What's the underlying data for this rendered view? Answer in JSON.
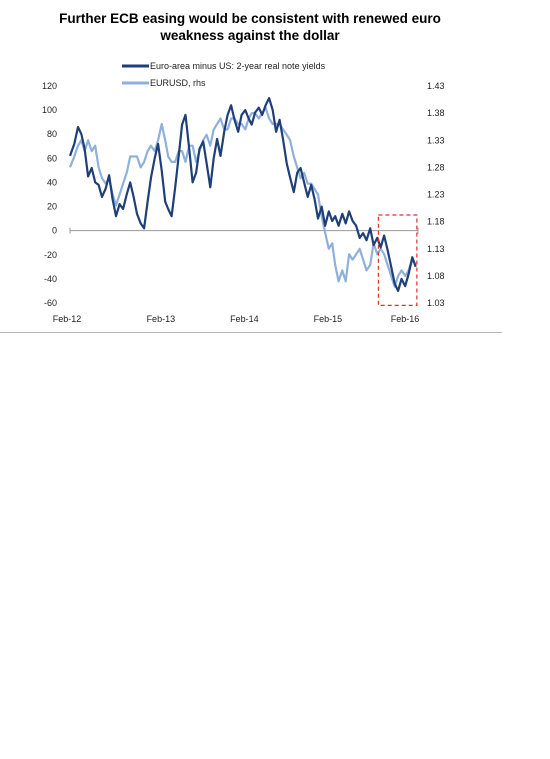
{
  "title_line1": "Further ECB easing would be consistent with renewed euro",
  "title_line2": "weakness against the dollar",
  "chart_data": {
    "type": "line",
    "x_tick_labels": [
      "Feb-12",
      "Feb-13",
      "Feb-14",
      "Feb-15",
      "Feb-16"
    ],
    "x_range": [
      "2012-01",
      "2016-03"
    ],
    "y_left": {
      "ticks": [
        120,
        100,
        80,
        60,
        40,
        20,
        0,
        -20,
        -40,
        -60
      ],
      "ylim": [
        -60,
        120
      ]
    },
    "y_right": {
      "ticks": [
        "1.43",
        "1.38",
        "1.33",
        "1.28",
        "1.23",
        "1.18",
        "1.13",
        "1.08",
        "1.03"
      ],
      "ylim": [
        1.03,
        1.43
      ]
    },
    "legend": {
      "placement": "top-center"
    },
    "series": [
      {
        "name": "Euro-area minus US: 2-year real note yields",
        "axis": "left",
        "color": "#1f3f77",
        "points": [
          [
            "2012-01-01",
            62
          ],
          [
            "2012-01-20",
            72
          ],
          [
            "2012-02-05",
            86
          ],
          [
            "2012-02-20",
            80
          ],
          [
            "2012-03-05",
            68
          ],
          [
            "2012-03-20",
            45
          ],
          [
            "2012-04-05",
            52
          ],
          [
            "2012-04-20",
            40
          ],
          [
            "2012-05-05",
            38
          ],
          [
            "2012-05-20",
            28
          ],
          [
            "2012-06-05",
            35
          ],
          [
            "2012-06-20",
            46
          ],
          [
            "2012-07-05",
            26
          ],
          [
            "2012-07-20",
            12
          ],
          [
            "2012-08-05",
            22
          ],
          [
            "2012-08-20",
            18
          ],
          [
            "2012-09-05",
            30
          ],
          [
            "2012-09-20",
            40
          ],
          [
            "2012-10-05",
            28
          ],
          [
            "2012-10-20",
            14
          ],
          [
            "2012-11-05",
            6
          ],
          [
            "2012-11-20",
            2
          ],
          [
            "2012-12-05",
            24
          ],
          [
            "2012-12-20",
            44
          ],
          [
            "2013-01-05",
            60
          ],
          [
            "2013-01-20",
            72
          ],
          [
            "2013-02-05",
            50
          ],
          [
            "2013-02-20",
            24
          ],
          [
            "2013-03-05",
            18
          ],
          [
            "2013-03-20",
            12
          ],
          [
            "2013-04-05",
            36
          ],
          [
            "2013-04-20",
            62
          ],
          [
            "2013-05-05",
            88
          ],
          [
            "2013-05-20",
            96
          ],
          [
            "2013-06-05",
            68
          ],
          [
            "2013-06-20",
            40
          ],
          [
            "2013-07-05",
            48
          ],
          [
            "2013-07-20",
            68
          ],
          [
            "2013-08-05",
            74
          ],
          [
            "2013-08-20",
            56
          ],
          [
            "2013-09-05",
            36
          ],
          [
            "2013-09-20",
            60
          ],
          [
            "2013-10-05",
            76
          ],
          [
            "2013-10-20",
            62
          ],
          [
            "2013-11-05",
            82
          ],
          [
            "2013-11-20",
            96
          ],
          [
            "2013-12-05",
            104
          ],
          [
            "2013-12-20",
            92
          ],
          [
            "2014-01-05",
            82
          ],
          [
            "2014-01-20",
            96
          ],
          [
            "2014-02-05",
            100
          ],
          [
            "2014-02-20",
            93
          ],
          [
            "2014-03-05",
            88
          ],
          [
            "2014-03-20",
            98
          ],
          [
            "2014-04-05",
            102
          ],
          [
            "2014-04-20",
            96
          ],
          [
            "2014-05-05",
            104
          ],
          [
            "2014-05-20",
            110
          ],
          [
            "2014-06-05",
            100
          ],
          [
            "2014-06-20",
            82
          ],
          [
            "2014-07-05",
            92
          ],
          [
            "2014-07-20",
            76
          ],
          [
            "2014-08-05",
            56
          ],
          [
            "2014-08-20",
            44
          ],
          [
            "2014-09-05",
            32
          ],
          [
            "2014-09-20",
            48
          ],
          [
            "2014-10-05",
            52
          ],
          [
            "2014-10-20",
            40
          ],
          [
            "2014-11-05",
            28
          ],
          [
            "2014-11-20",
            38
          ],
          [
            "2014-12-05",
            26
          ],
          [
            "2014-12-20",
            10
          ],
          [
            "2015-01-05",
            20
          ],
          [
            "2015-01-20",
            4
          ],
          [
            "2015-02-05",
            16
          ],
          [
            "2015-02-20",
            8
          ],
          [
            "2015-03-05",
            12
          ],
          [
            "2015-03-20",
            4
          ],
          [
            "2015-04-05",
            14
          ],
          [
            "2015-04-20",
            6
          ],
          [
            "2015-05-05",
            16
          ],
          [
            "2015-05-20",
            8
          ],
          [
            "2015-06-05",
            4
          ],
          [
            "2015-06-20",
            -6
          ],
          [
            "2015-07-05",
            -2
          ],
          [
            "2015-07-20",
            -8
          ],
          [
            "2015-08-05",
            2
          ],
          [
            "2015-08-20",
            -12
          ],
          [
            "2015-09-05",
            -6
          ],
          [
            "2015-09-20",
            -14
          ],
          [
            "2015-10-05",
            -4
          ],
          [
            "2015-10-20",
            -16
          ],
          [
            "2015-11-05",
            -30
          ],
          [
            "2015-11-20",
            -44
          ],
          [
            "2015-12-05",
            -50
          ],
          [
            "2015-12-20",
            -40
          ],
          [
            "2016-01-05",
            -46
          ],
          [
            "2016-01-20",
            -36
          ],
          [
            "2016-02-05",
            -22
          ],
          [
            "2016-02-20",
            -30
          ]
        ]
      },
      {
        "name": "EURUSD, rhs",
        "axis": "right",
        "color": "#8fb0dc",
        "points": [
          [
            "2012-01-01",
            1.28
          ],
          [
            "2012-01-20",
            1.3
          ],
          [
            "2012-02-05",
            1.32
          ],
          [
            "2012-02-20",
            1.33
          ],
          [
            "2012-03-05",
            1.31
          ],
          [
            "2012-03-20",
            1.33
          ],
          [
            "2012-04-05",
            1.31
          ],
          [
            "2012-04-20",
            1.32
          ],
          [
            "2012-05-05",
            1.28
          ],
          [
            "2012-05-20",
            1.26
          ],
          [
            "2012-06-05",
            1.25
          ],
          [
            "2012-06-20",
            1.26
          ],
          [
            "2012-07-05",
            1.23
          ],
          [
            "2012-07-20",
            1.21
          ],
          [
            "2012-08-05",
            1.23
          ],
          [
            "2012-08-20",
            1.25
          ],
          [
            "2012-09-05",
            1.27
          ],
          [
            "2012-09-20",
            1.3
          ],
          [
            "2012-10-05",
            1.3
          ],
          [
            "2012-10-20",
            1.3
          ],
          [
            "2012-11-05",
            1.28
          ],
          [
            "2012-11-20",
            1.29
          ],
          [
            "2012-12-05",
            1.31
          ],
          [
            "2012-12-20",
            1.32
          ],
          [
            "2013-01-05",
            1.31
          ],
          [
            "2013-01-20",
            1.33
          ],
          [
            "2013-02-05",
            1.36
          ],
          [
            "2013-02-20",
            1.33
          ],
          [
            "2013-03-05",
            1.3
          ],
          [
            "2013-03-20",
            1.29
          ],
          [
            "2013-04-05",
            1.29
          ],
          [
            "2013-04-20",
            1.31
          ],
          [
            "2013-05-05",
            1.31
          ],
          [
            "2013-05-20",
            1.29
          ],
          [
            "2013-06-05",
            1.32
          ],
          [
            "2013-06-20",
            1.32
          ],
          [
            "2013-07-05",
            1.29
          ],
          [
            "2013-07-20",
            1.31
          ],
          [
            "2013-08-05",
            1.33
          ],
          [
            "2013-08-20",
            1.34
          ],
          [
            "2013-09-05",
            1.32
          ],
          [
            "2013-09-20",
            1.35
          ],
          [
            "2013-10-05",
            1.36
          ],
          [
            "2013-10-20",
            1.37
          ],
          [
            "2013-11-05",
            1.35
          ],
          [
            "2013-11-20",
            1.35
          ],
          [
            "2013-12-05",
            1.37
          ],
          [
            "2013-12-20",
            1.37
          ],
          [
            "2014-01-05",
            1.36
          ],
          [
            "2014-01-20",
            1.36
          ],
          [
            "2014-02-05",
            1.35
          ],
          [
            "2014-02-20",
            1.37
          ],
          [
            "2014-03-05",
            1.38
          ],
          [
            "2014-03-20",
            1.38
          ],
          [
            "2014-04-05",
            1.37
          ],
          [
            "2014-04-20",
            1.38
          ],
          [
            "2014-05-05",
            1.39
          ],
          [
            "2014-05-20",
            1.37
          ],
          [
            "2014-06-05",
            1.36
          ],
          [
            "2014-06-20",
            1.36
          ],
          [
            "2014-07-05",
            1.36
          ],
          [
            "2014-07-20",
            1.35
          ],
          [
            "2014-08-05",
            1.34
          ],
          [
            "2014-08-20",
            1.33
          ],
          [
            "2014-09-05",
            1.3
          ],
          [
            "2014-09-20",
            1.28
          ],
          [
            "2014-10-05",
            1.26
          ],
          [
            "2014-10-20",
            1.27
          ],
          [
            "2014-11-05",
            1.25
          ],
          [
            "2014-11-20",
            1.25
          ],
          [
            "2014-12-05",
            1.24
          ],
          [
            "2014-12-20",
            1.23
          ],
          [
            "2015-01-05",
            1.19
          ],
          [
            "2015-01-20",
            1.16
          ],
          [
            "2015-02-05",
            1.13
          ],
          [
            "2015-02-20",
            1.14
          ],
          [
            "2015-03-05",
            1.1
          ],
          [
            "2015-03-20",
            1.07
          ],
          [
            "2015-04-05",
            1.09
          ],
          [
            "2015-04-20",
            1.07
          ],
          [
            "2015-05-05",
            1.12
          ],
          [
            "2015-05-20",
            1.11
          ],
          [
            "2015-06-05",
            1.12
          ],
          [
            "2015-06-20",
            1.13
          ],
          [
            "2015-07-05",
            1.11
          ],
          [
            "2015-07-20",
            1.09
          ],
          [
            "2015-08-05",
            1.1
          ],
          [
            "2015-08-20",
            1.14
          ],
          [
            "2015-09-05",
            1.12
          ],
          [
            "2015-09-20",
            1.13
          ],
          [
            "2015-10-05",
            1.12
          ],
          [
            "2015-10-20",
            1.1
          ],
          [
            "2015-11-05",
            1.08
          ],
          [
            "2015-11-20",
            1.06
          ],
          [
            "2015-12-05",
            1.08
          ],
          [
            "2015-12-20",
            1.09
          ],
          [
            "2016-01-05",
            1.08
          ],
          [
            "2016-01-20",
            1.09
          ],
          [
            "2016-02-05",
            1.11
          ],
          [
            "2016-02-20",
            1.1
          ]
        ]
      }
    ],
    "annotation": {
      "type": "dashed-box",
      "color": "#e0302a",
      "x_range": [
        "2015-09-10",
        "2016-02-25"
      ],
      "y_range_left": [
        -62,
        13
      ]
    }
  }
}
